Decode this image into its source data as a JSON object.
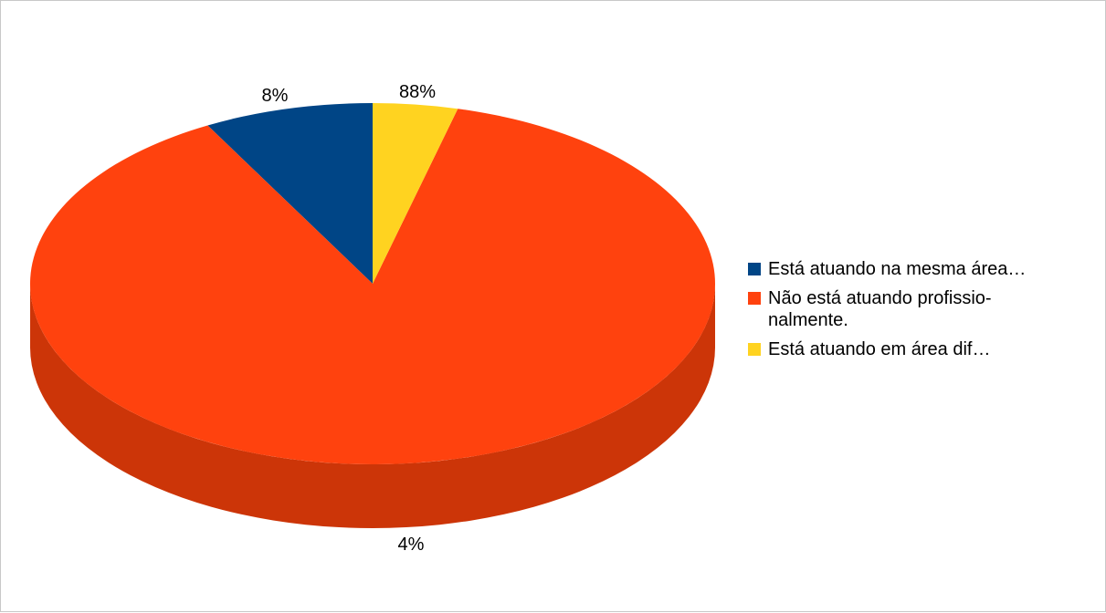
{
  "chart_data": {
    "type": "pie",
    "title": "",
    "three_d": true,
    "slices": [
      {
        "label": "Está atuando na mesma área…",
        "legend_lines": [
          "Está atuando na mesma área…"
        ],
        "value": 8,
        "value_label": "8%",
        "color": "#004586"
      },
      {
        "label": "Não está atuando profissionalmente.",
        "legend_lines": [
          "Não está atuando profissio-",
          "nalmente."
        ],
        "value": 88,
        "value_label": "88%",
        "color": "#ff420e"
      },
      {
        "label": "Está atuando em área dif…",
        "legend_lines": [
          "Está atuando em área dif…"
        ],
        "value": 4,
        "value_label": "4%",
        "color": "#ffd320"
      }
    ],
    "side_color": "#cc3508",
    "legend_position": "right"
  }
}
